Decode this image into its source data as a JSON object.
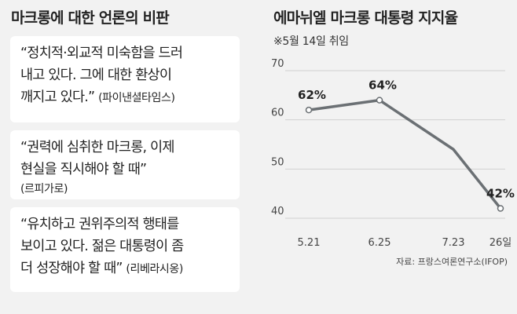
{
  "left": {
    "title": "마크롱에 대한 언론의 비판",
    "quotes": [
      {
        "lines": [
          "“정치적·외교적 미숙함을 드러",
          "내고 있다. 그에 대한 환상이",
          "깨지고 있다.”"
        ],
        "source": "(파이낸셜타임스)"
      },
      {
        "lines": [
          "“권력에 심취한 마크롱, 이제",
          "현실을 직시해야 할 때”"
        ],
        "source": "(르피가로)"
      },
      {
        "lines": [
          "“유치하고 권위주의적 행태를",
          "보이고 있다. 젊은 대통령이 좀",
          "더 성장해야 할 때”"
        ],
        "source": "(리베라시옹)"
      }
    ]
  },
  "chart_data": {
    "type": "line",
    "title": "에마뉘엘 마크롱 대통령 지지율",
    "subtitle": "※5월 14일 취임",
    "x": [
      "5.21",
      "6.25",
      "7.23",
      "26일"
    ],
    "series": [
      {
        "values": [
          62,
          64,
          54,
          42
        ],
        "data_labels": [
          "62%",
          "64%",
          "",
          "42%"
        ]
      }
    ],
    "ylim": [
      40,
      70
    ],
    "yticks": [
      40,
      50,
      60,
      70
    ],
    "grid": true,
    "source": "자료: 프랑스여론연구소(IFOP)",
    "colors": {
      "line": "#6b7074",
      "grid": "#d0d0d0",
      "marker_fill": "#ffffff"
    }
  }
}
